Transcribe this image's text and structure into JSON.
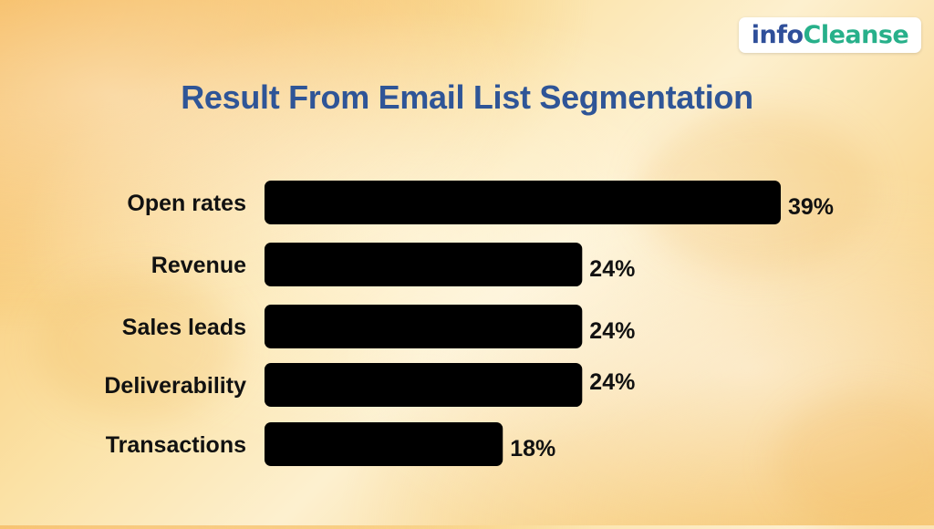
{
  "logo": {
    "part1": "info",
    "part2": "Cleanse",
    "color_part1": "#2f4f9a",
    "color_part2": "#27b08a"
  },
  "chart_data": {
    "type": "bar",
    "orientation": "horizontal",
    "title": "Result From Email List Segmentation",
    "categories": [
      "Open rates",
      "Revenue",
      "Sales leads",
      "Deliverability",
      "Transactions"
    ],
    "values": [
      39,
      24,
      24,
      24,
      18
    ],
    "value_labels": [
      "39%",
      "24%",
      "24%",
      "24%",
      "18%"
    ],
    "xlim": [
      0,
      39
    ],
    "grid": false,
    "legend": "none",
    "bar_color": "#000000",
    "title_color": "#2f5597"
  }
}
